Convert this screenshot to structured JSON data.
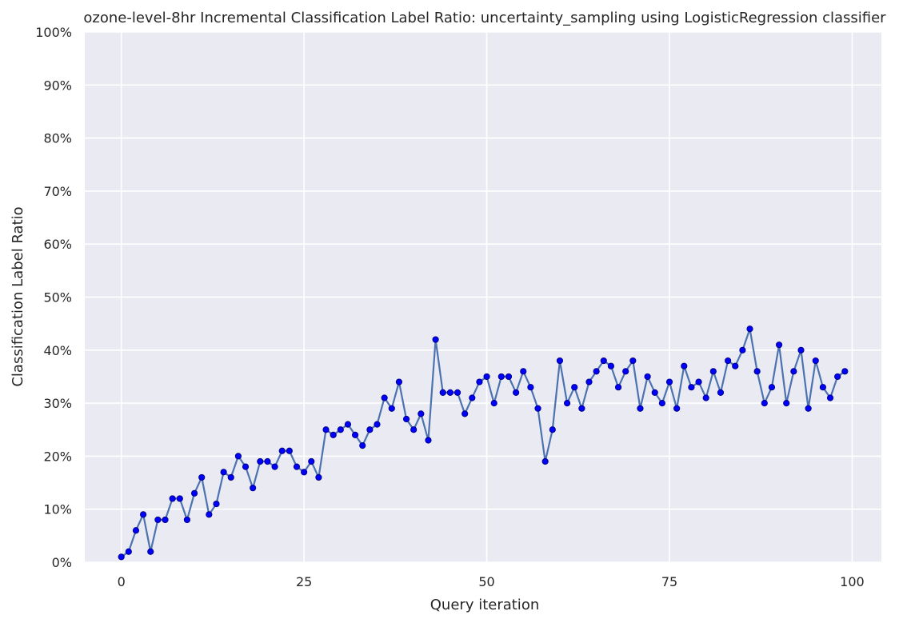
{
  "chart_data": {
    "type": "line",
    "title": "ozone-level-8hr Incremental Classification Label Ratio: uncertainty_sampling using LogisticRegression classifier",
    "xlabel": "Query iteration",
    "ylabel": "Classification Label Ratio",
    "xlim": [
      -5,
      104
    ],
    "ylim": [
      0,
      100
    ],
    "xticks": [
      0,
      25,
      50,
      75,
      100
    ],
    "xtick_labels": [
      "0",
      "25",
      "50",
      "75",
      "100"
    ],
    "yticks": [
      0,
      10,
      20,
      30,
      40,
      50,
      60,
      70,
      80,
      90,
      100
    ],
    "ytick_labels": [
      "0%",
      "10%",
      "20%",
      "30%",
      "40%",
      "50%",
      "60%",
      "70%",
      "80%",
      "90%",
      "100%"
    ],
    "grid": true,
    "background": "#eaeaf2",
    "line_color": "#4c72b0",
    "marker_color": "#0000ff",
    "series": [
      {
        "x": [
          0,
          1,
          2,
          3,
          4,
          5,
          6,
          7,
          8,
          9,
          10,
          11,
          12,
          13,
          14,
          15,
          16,
          17,
          18,
          19,
          20,
          21,
          22,
          23,
          24,
          25,
          26,
          27,
          28,
          29,
          30,
          31,
          32,
          33,
          34,
          35,
          36,
          37,
          38,
          39,
          40,
          41,
          42,
          43,
          44,
          45,
          46,
          47,
          48,
          49,
          50,
          51,
          52,
          53,
          54,
          55,
          56,
          57,
          58,
          59,
          60,
          61,
          62,
          63,
          64,
          65,
          66,
          67,
          68,
          69,
          70,
          71,
          72,
          73,
          74,
          75,
          76,
          77,
          78,
          79,
          80,
          81,
          82,
          83,
          84,
          85,
          86,
          87,
          88,
          89,
          90,
          91,
          92,
          93,
          94,
          95,
          96,
          97,
          98,
          99
        ],
        "values": [
          1,
          2,
          6,
          9,
          2,
          8,
          8,
          12,
          12,
          8,
          13,
          16,
          9,
          11,
          17,
          16,
          20,
          18,
          14,
          19,
          19,
          18,
          21,
          21,
          18,
          17,
          19,
          16,
          25,
          24,
          25,
          26,
          24,
          22,
          25,
          26,
          31,
          29,
          34,
          27,
          25,
          28,
          23,
          42,
          32,
          32,
          32,
          28,
          31,
          34,
          35,
          30,
          35,
          35,
          32,
          36,
          33,
          29,
          19,
          25,
          38,
          30,
          33,
          29,
          34,
          36,
          38,
          37,
          33,
          36,
          38,
          29,
          35,
          32,
          30,
          34,
          29,
          37,
          33,
          34,
          31,
          36,
          32,
          38,
          37,
          40,
          44,
          36,
          30,
          33,
          41,
          30,
          36,
          40,
          29,
          38,
          33,
          31,
          35,
          36
        ]
      }
    ]
  }
}
